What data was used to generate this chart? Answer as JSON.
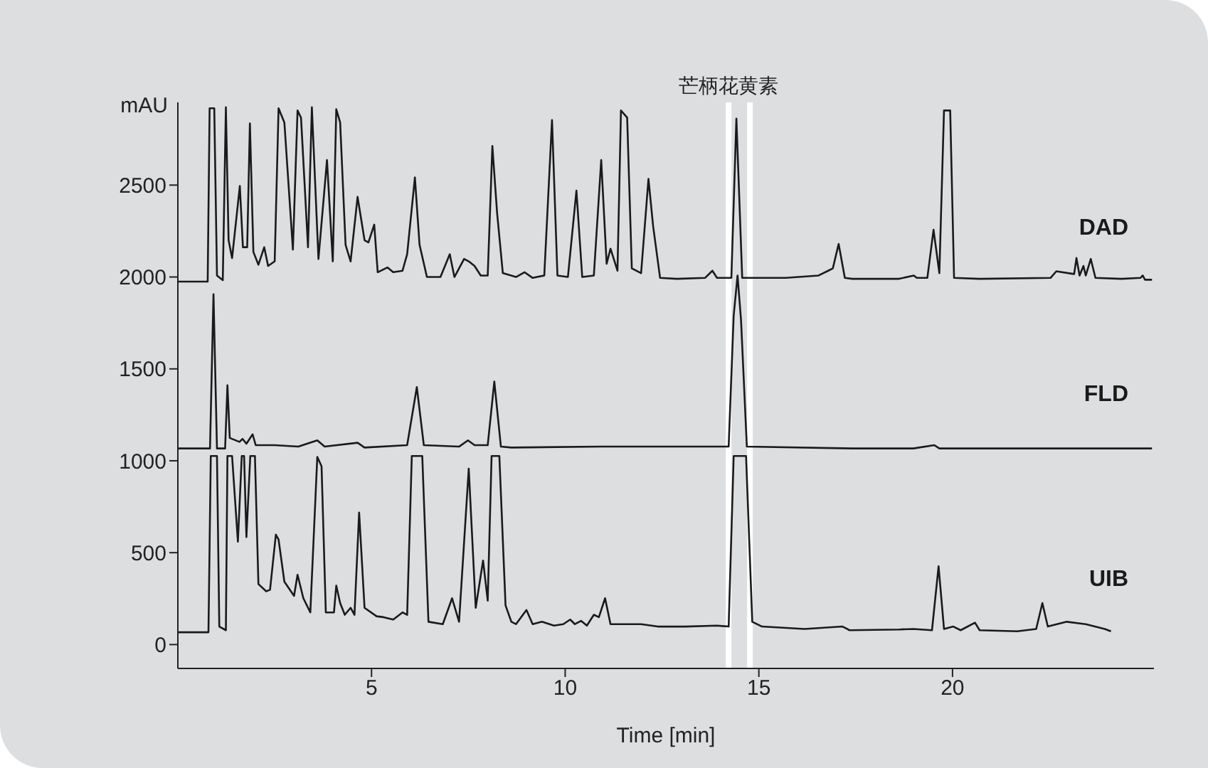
{
  "chart_data": {
    "type": "line",
    "xlabel": "Time [min]",
    "ylabel": "mAU",
    "xlim": [
      0,
      25.2
    ],
    "xticks": [
      5,
      10,
      15,
      20
    ],
    "ylim": [
      -130,
      2950
    ],
    "yticks": [
      0,
      500,
      1000,
      1500,
      2000,
      2500
    ],
    "ref_lines": [
      {
        "axis": "x",
        "value": 14.22,
        "label": "芒柄花黄素",
        "color": "#ffffff"
      },
      {
        "axis": "x",
        "value": 14.77,
        "color": "#ffffff"
      }
    ],
    "series": [
      {
        "name": "DAD",
        "color": "#1a1a1a",
        "x": [
          0,
          0.77,
          0.82,
          0.94,
          1.01,
          1.16,
          1.24,
          1.31,
          1.4,
          1.6,
          1.68,
          1.79,
          1.86,
          1.95,
          2.08,
          2.23,
          2.33,
          2.5,
          2.6,
          2.75,
          2.97,
          3.09,
          3.18,
          3.36,
          3.46,
          3.63,
          3.85,
          4.0,
          4.09,
          4.19,
          4.33,
          4.46,
          4.64,
          4.82,
          4.92,
          5.07,
          5.16,
          5.41,
          5.56,
          5.8,
          5.92,
          6.12,
          6.24,
          6.43,
          6.78,
          7.02,
          7.14,
          7.39,
          7.51,
          7.66,
          7.82,
          8.0,
          8.12,
          8.24,
          8.39,
          8.73,
          8.95,
          9.16,
          9.46,
          9.66,
          9.8,
          10.07,
          10.29,
          10.44,
          10.74,
          10.93,
          11.07,
          11.17,
          11.35,
          11.44,
          11.6,
          11.72,
          11.96,
          12.15,
          12.27,
          12.45,
          12.88,
          13.61,
          13.8,
          13.92,
          14.29,
          14.42,
          14.57,
          15.08,
          15.69,
          16.54,
          16.79,
          16.91,
          17.06,
          17.22,
          17.41,
          17.77,
          18.62,
          19.0,
          19.08,
          19.35,
          19.51,
          19.66,
          19.78,
          19.94,
          20.04,
          20.7,
          22.53,
          22.68,
          23.14,
          23.2,
          23.28,
          23.38,
          23.44,
          23.57,
          23.69,
          24.36,
          24.85,
          24.91,
          24.97,
          25.15
        ],
        "values": [
          1975,
          1975,
          2918,
          2918,
          2008,
          1983,
          2924,
          2200,
          2103,
          2495,
          2162,
          2162,
          2836,
          2136,
          2067,
          2162,
          2060,
          2085,
          2918,
          2841,
          2149,
          2906,
          2867,
          2162,
          2924,
          2098,
          2636,
          2085,
          2913,
          2841,
          2175,
          2085,
          2436,
          2200,
          2188,
          2285,
          2026,
          2052,
          2026,
          2034,
          2124,
          2542,
          2175,
          2000,
          2000,
          2124,
          2000,
          2098,
          2085,
          2060,
          2008,
          2008,
          2713,
          2354,
          2021,
          2000,
          2026,
          1995,
          2008,
          2854,
          2008,
          2000,
          2470,
          2000,
          2008,
          2636,
          2072,
          2154,
          2034,
          2906,
          2867,
          2047,
          2021,
          2534,
          2277,
          1995,
          1990,
          1995,
          2034,
          1995,
          1995,
          2862,
          1995,
          1995,
          1995,
          2008,
          2034,
          2047,
          2180,
          1995,
          1990,
          1990,
          1990,
          2008,
          1995,
          1995,
          2257,
          2021,
          2906,
          2906,
          1995,
          1990,
          1995,
          2031,
          2016,
          2103,
          2008,
          2060,
          2008,
          2098,
          1995,
          1990,
          1995,
          2008,
          1985,
          1985
        ]
      },
      {
        "name": "FLD",
        "color": "#1a1a1a",
        "x": [
          0,
          0.83,
          0.92,
          1.01,
          1.22,
          1.28,
          1.34,
          1.59,
          1.67,
          1.77,
          1.93,
          2.01,
          2.5,
          3.11,
          3.6,
          3.79,
          4.64,
          4.82,
          5.92,
          6.17,
          6.35,
          7.26,
          7.49,
          7.66,
          8.0,
          8.17,
          8.34,
          8.61,
          10.93,
          14.22,
          14.35,
          14.45,
          14.54,
          14.69,
          17.4,
          18.99,
          19.53,
          19.66,
          25.15
        ],
        "values": [
          1067,
          1067,
          1906,
          1067,
          1067,
          1411,
          1124,
          1103,
          1119,
          1093,
          1144,
          1085,
          1085,
          1077,
          1111,
          1077,
          1098,
          1072,
          1085,
          1401,
          1085,
          1077,
          1111,
          1085,
          1085,
          1431,
          1077,
          1072,
          1077,
          1077,
          1790,
          2008,
          1765,
          1077,
          1067,
          1067,
          1085,
          1067,
          1067
        ]
      },
      {
        "name": "UIB",
        "color": "#1a1a1a",
        "x": [
          0,
          0.79,
          0.85,
          1.01,
          1.07,
          1.24,
          1.28,
          1.4,
          1.55,
          1.65,
          1.71,
          1.77,
          1.87,
          1.99,
          2.08,
          2.28,
          2.38,
          2.53,
          2.6,
          2.75,
          3.0,
          3.09,
          3.24,
          3.42,
          3.6,
          3.71,
          3.82,
          4.03,
          4.09,
          4.19,
          4.31,
          4.46,
          4.56,
          4.68,
          4.82,
          5.13,
          5.31,
          5.56,
          5.8,
          5.92,
          6.04,
          6.31,
          6.47,
          6.84,
          7.08,
          7.26,
          7.51,
          7.69,
          7.88,
          8.0,
          8.1,
          8.3,
          8.46,
          8.61,
          8.73,
          9.0,
          9.16,
          9.4,
          9.71,
          9.95,
          10.13,
          10.25,
          10.41,
          10.56,
          10.74,
          10.87,
          11.03,
          11.17,
          11.6,
          11.96,
          12.39,
          13.1,
          13.92,
          14.22,
          14.35,
          14.67,
          14.83,
          15.08,
          16.18,
          17.16,
          17.28,
          17.34,
          18.62,
          18.99,
          19.47,
          19.64,
          19.78,
          20.02,
          20.21,
          20.58,
          20.7,
          21.67,
          22.16,
          22.32,
          22.46,
          22.95,
          23.44,
          23.93,
          24.09
        ],
        "values": [
          67,
          67,
          1026,
          1026,
          98,
          78,
          1026,
          1026,
          560,
          1026,
          1026,
          585,
          1026,
          1026,
          329,
          290,
          298,
          598,
          572,
          342,
          265,
          380,
          252,
          175,
          1021,
          970,
          175,
          175,
          321,
          226,
          162,
          200,
          162,
          718,
          200,
          154,
          149,
          136,
          175,
          162,
          1026,
          1026,
          124,
          111,
          252,
          124,
          957,
          200,
          457,
          239,
          1026,
          1026,
          213,
          124,
          111,
          188,
          111,
          124,
          103,
          111,
          136,
          111,
          129,
          103,
          162,
          149,
          252,
          111,
          111,
          111,
          98,
          98,
          103,
          98,
          1026,
          1026,
          124,
          98,
          85,
          98,
          85,
          78,
          82,
          85,
          78,
          426,
          85,
          98,
          78,
          119,
          78,
          72,
          85,
          226,
          98,
          124,
          111,
          85,
          72
        ]
      }
    ]
  }
}
